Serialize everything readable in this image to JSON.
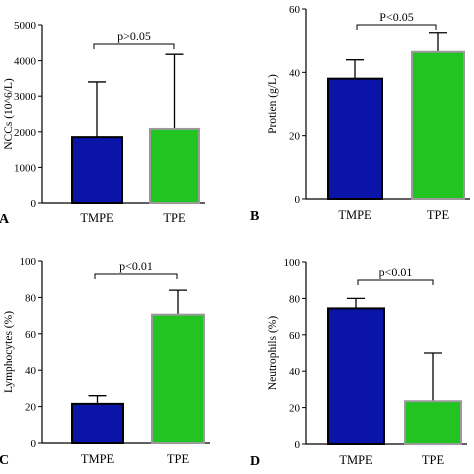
{
  "colors": {
    "tmpe": "#0a14a8",
    "tpe": "#22c422",
    "tpe_edge": "#9a9a9a",
    "tmpe_edge": "#000000"
  },
  "chart_data": [
    {
      "type": "bar",
      "panel_label": "A",
      "ylabel": "NCCs (10^6/L)",
      "categories": [
        "TMPE",
        "TPE"
      ],
      "values": [
        1850,
        2080
      ],
      "errors": [
        1550,
        2100
      ],
      "ylim": [
        0,
        5000
      ],
      "yticks": [
        "0",
        "1000",
        "2000",
        "3000",
        "4000",
        "5000"
      ],
      "annotation": "p>0.05",
      "grid": false
    },
    {
      "type": "bar",
      "panel_label": "B",
      "ylabel": "Protien (g/L)",
      "categories": [
        "TMPE",
        "TPE"
      ],
      "values": [
        38,
        46.5
      ],
      "errors": [
        6,
        6
      ],
      "ylim": [
        0,
        60
      ],
      "yticks": [
        "0",
        "20",
        "40",
        "60"
      ],
      "annotation": "P<0.05",
      "grid": false
    },
    {
      "type": "bar",
      "panel_label": "C",
      "ylabel": "Lymphocytes (%)",
      "categories": [
        "TMPE",
        "TPE"
      ],
      "values": [
        21.5,
        70.5
      ],
      "errors": [
        4.5,
        13.5
      ],
      "ylim": [
        0,
        100
      ],
      "yticks": [
        "0",
        "20",
        "40",
        "60",
        "80",
        "100"
      ],
      "annotation": "p<0.01",
      "grid": false
    },
    {
      "type": "bar",
      "panel_label": "D",
      "ylabel": "Neutrophils (%)",
      "categories": [
        "TMPE",
        "TPE"
      ],
      "values": [
        74.5,
        23.5
      ],
      "errors": [
        5.5,
        26.5
      ],
      "ylim": [
        0,
        100
      ],
      "yticks": [
        "0",
        "20",
        "40",
        "60",
        "80",
        "100"
      ],
      "annotation": "p<0.01",
      "grid": false
    }
  ]
}
